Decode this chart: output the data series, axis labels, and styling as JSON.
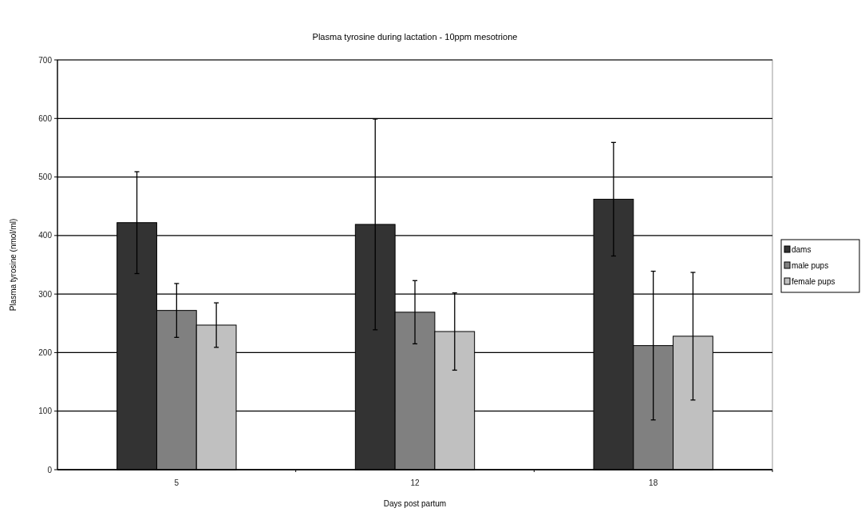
{
  "chart_data": {
    "type": "bar",
    "title": "Plasma tyrosine during lactation - 10ppm mesotrione",
    "xlabel": "Days post partum",
    "ylabel": "Plasma tyrosine (nmol/ml)",
    "categories": [
      "5",
      "12",
      "18"
    ],
    "series": [
      {
        "name": "dams",
        "color": "#333333",
        "values": [
          422,
          419,
          462
        ],
        "errors": [
          87,
          180,
          97
        ]
      },
      {
        "name": "male pups",
        "color": "#808080",
        "values": [
          272,
          269,
          212
        ],
        "errors": [
          46,
          54,
          127
        ]
      },
      {
        "name": "female pups",
        "color": "#c0c0c0",
        "values": [
          247,
          236,
          228
        ],
        "errors": [
          38,
          66,
          109
        ]
      }
    ],
    "ylim": [
      0,
      700
    ],
    "yticks": [
      0,
      100,
      200,
      300,
      400,
      500,
      600,
      700
    ],
    "grid": "y",
    "legend": "right"
  }
}
